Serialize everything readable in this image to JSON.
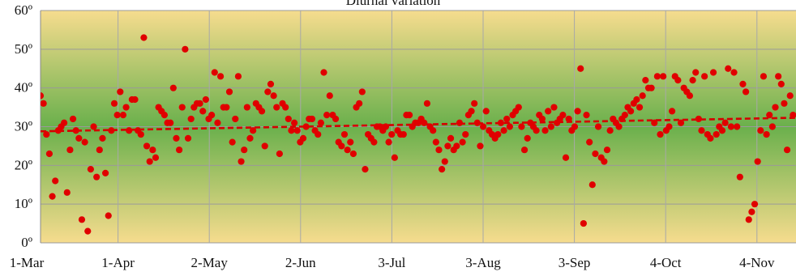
{
  "chart_data": {
    "type": "scatter",
    "title": "Diurnal variation",
    "xlabel": "",
    "ylabel": "",
    "x_tick_labels": [
      "1-Mar",
      "1-Apr",
      "2-May",
      "2-Jun",
      "3-Jul",
      "3-Aug",
      "3-Sep",
      "4-Oct",
      "4-Nov"
    ],
    "y_tick_labels": [
      "0º",
      "10º",
      "20º",
      "30º",
      "40º",
      "50º",
      "60º"
    ],
    "ylim": [
      0,
      60
    ],
    "xlim": [
      "2015-03-01",
      "2015-11-12"
    ],
    "grid": "horizontal",
    "legend": "none",
    "background_gradient": [
      "#f6dc8e",
      "#6ab04c",
      "#f6dc8e"
    ],
    "point_color": "#e00000",
    "trend_color": "#d40000",
    "trendline": {
      "style": "dashed",
      "start": [
        "2015-03-01",
        28.8
      ],
      "end": [
        "2015-11-12",
        32.3
      ]
    },
    "series": [
      {
        "x": [
          "2015-03-01",
          "2015-03-02",
          "2015-03-03",
          "2015-03-04",
          "2015-03-05",
          "2015-03-06",
          "2015-03-07",
          "2015-03-08",
          "2015-03-09",
          "2015-03-10",
          "2015-03-11",
          "2015-03-12",
          "2015-03-13",
          "2015-03-14",
          "2015-03-15",
          "2015-03-16",
          "2015-03-17",
          "2015-03-18",
          "2015-03-19",
          "2015-03-20",
          "2015-03-21",
          "2015-03-22",
          "2015-03-23",
          "2015-03-24",
          "2015-03-25",
          "2015-03-26",
          "2015-03-27",
          "2015-03-28",
          "2015-03-29",
          "2015-03-30",
          "2015-03-31",
          "2015-04-01",
          "2015-04-02",
          "2015-04-03",
          "2015-04-04",
          "2015-04-05",
          "2015-04-06",
          "2015-04-07",
          "2015-04-08",
          "2015-04-09",
          "2015-04-10",
          "2015-04-11",
          "2015-04-12",
          "2015-04-13",
          "2015-04-14",
          "2015-04-15",
          "2015-04-16",
          "2015-04-17",
          "2015-04-18",
          "2015-04-19",
          "2015-04-20",
          "2015-04-21",
          "2015-04-22",
          "2015-04-23",
          "2015-04-24",
          "2015-04-25",
          "2015-04-26",
          "2015-04-27",
          "2015-04-28",
          "2015-04-29",
          "2015-04-30",
          "2015-05-01",
          "2015-05-02",
          "2015-05-03",
          "2015-05-04",
          "2015-05-05",
          "2015-05-06",
          "2015-05-07",
          "2015-05-08",
          "2015-05-09",
          "2015-05-10",
          "2015-05-11",
          "2015-05-12",
          "2015-05-13",
          "2015-05-14",
          "2015-05-15",
          "2015-05-16",
          "2015-05-17",
          "2015-05-18",
          "2015-05-19",
          "2015-05-20",
          "2015-05-21",
          "2015-05-22",
          "2015-05-23",
          "2015-05-24",
          "2015-05-25",
          "2015-05-26",
          "2015-05-27",
          "2015-05-28",
          "2015-05-29",
          "2015-05-30",
          "2015-05-31",
          "2015-06-01",
          "2015-06-02",
          "2015-06-03",
          "2015-06-04",
          "2015-06-05",
          "2015-06-06",
          "2015-06-07",
          "2015-06-08",
          "2015-06-09",
          "2015-06-10",
          "2015-06-11",
          "2015-06-12",
          "2015-06-13",
          "2015-06-14",
          "2015-06-15",
          "2015-06-16",
          "2015-06-17",
          "2015-06-18",
          "2015-06-19",
          "2015-06-20",
          "2015-06-21",
          "2015-06-22",
          "2015-06-23",
          "2015-06-24",
          "2015-06-25",
          "2015-06-26",
          "2015-06-27",
          "2015-06-28",
          "2015-06-29",
          "2015-06-30",
          "2015-07-01",
          "2015-07-02",
          "2015-07-03",
          "2015-07-04",
          "2015-07-05",
          "2015-07-06",
          "2015-07-07",
          "2015-07-08",
          "2015-07-09",
          "2015-07-10",
          "2015-07-11",
          "2015-07-12",
          "2015-07-13",
          "2015-07-14",
          "2015-07-15",
          "2015-07-16",
          "2015-07-17",
          "2015-07-18",
          "2015-07-19",
          "2015-07-20",
          "2015-07-21",
          "2015-07-22",
          "2015-07-23",
          "2015-07-24",
          "2015-07-25",
          "2015-07-26",
          "2015-07-27",
          "2015-07-28",
          "2015-07-29",
          "2015-07-30",
          "2015-07-31",
          "2015-08-01",
          "2015-08-02",
          "2015-08-03",
          "2015-08-04",
          "2015-08-05",
          "2015-08-06",
          "2015-08-07",
          "2015-08-08",
          "2015-08-09",
          "2015-08-10",
          "2015-08-11",
          "2015-08-12",
          "2015-08-13",
          "2015-08-14",
          "2015-08-15",
          "2015-08-16",
          "2015-08-17",
          "2015-08-18",
          "2015-08-19",
          "2015-08-20",
          "2015-08-21",
          "2015-08-22",
          "2015-08-23",
          "2015-08-24",
          "2015-08-25",
          "2015-08-26",
          "2015-08-27",
          "2015-08-28",
          "2015-08-29",
          "2015-08-30",
          "2015-08-31",
          "2015-09-01",
          "2015-09-02",
          "2015-09-03",
          "2015-09-04",
          "2015-09-05",
          "2015-09-06",
          "2015-09-07",
          "2015-09-08",
          "2015-09-09",
          "2015-09-10",
          "2015-09-11",
          "2015-09-12",
          "2015-09-13",
          "2015-09-14",
          "2015-09-15",
          "2015-09-16",
          "2015-09-17",
          "2015-09-18",
          "2015-09-19",
          "2015-09-20",
          "2015-09-21",
          "2015-09-22",
          "2015-09-23",
          "2015-09-24",
          "2015-09-25",
          "2015-09-26",
          "2015-09-27",
          "2015-09-28",
          "2015-09-29",
          "2015-09-30",
          "2015-10-01",
          "2015-10-02",
          "2015-10-03",
          "2015-10-04",
          "2015-10-05",
          "2015-10-06",
          "2015-10-07",
          "2015-10-08",
          "2015-10-09",
          "2015-10-10",
          "2015-10-11",
          "2015-10-12",
          "2015-10-13",
          "2015-10-14",
          "2015-10-15",
          "2015-10-16",
          "2015-10-17",
          "2015-10-18",
          "2015-10-19",
          "2015-10-20",
          "2015-10-21",
          "2015-10-22",
          "2015-10-23",
          "2015-10-24",
          "2015-10-25",
          "2015-10-26",
          "2015-10-27",
          "2015-10-28",
          "2015-10-29",
          "2015-10-30",
          "2015-10-31",
          "2015-11-01",
          "2015-11-02",
          "2015-11-03",
          "2015-11-04",
          "2015-11-05",
          "2015-11-06",
          "2015-11-07",
          "2015-11-08",
          "2015-11-09",
          "2015-11-10",
          "2015-11-11"
        ],
        "y": [
          38,
          36,
          28,
          23,
          12,
          16,
          29,
          30,
          31,
          13,
          24,
          32,
          29,
          27,
          6,
          26,
          3,
          19,
          30,
          17,
          24,
          27,
          18,
          7,
          29,
          36,
          33,
          39,
          33,
          35,
          29,
          37,
          37,
          29,
          28,
          53,
          25,
          21,
          24,
          22,
          35,
          34,
          33,
          31,
          31,
          40,
          27,
          24,
          35,
          50,
          27,
          32,
          35,
          36,
          36,
          34,
          37,
          32,
          33,
          44,
          31,
          43,
          35,
          35,
          39,
          26,
          32,
          43,
          21,
          24,
          35,
          27,
          29,
          36,
          35,
          34,
          25,
          39,
          41,
          38,
          35,
          23,
          36,
          35,
          32,
          29,
          31,
          29,
          26,
          27,
          30,
          32,
          32,
          29,
          28,
          31,
          44,
          33,
          38,
          33,
          32,
          26,
          25,
          28,
          24,
          26,
          23,
          35,
          36,
          39,
          19,
          28,
          27,
          26,
          30,
          30,
          29,
          30,
          26,
          28,
          22,
          29,
          28,
          28,
          33,
          33,
          30,
          31,
          31,
          32,
          31,
          36,
          30,
          29,
          26,
          24,
          19,
          21,
          25,
          27,
          24,
          25,
          31,
          26,
          28,
          33,
          34,
          36,
          31,
          25,
          30,
          34,
          29,
          28,
          27,
          28,
          31,
          29,
          32,
          30,
          33,
          34,
          35,
          30,
          24,
          27,
          31,
          30,
          29,
          33,
          32,
          29,
          34,
          30,
          35,
          31,
          32,
          33,
          22,
          32,
          29,
          30,
          34,
          45,
          5,
          33,
          26,
          15,
          23,
          30,
          22,
          21,
          24,
          29,
          32,
          31,
          30,
          32,
          33,
          35,
          34,
          36,
          37,
          35,
          38,
          42,
          40,
          40,
          31,
          43,
          28,
          43,
          29,
          30,
          34,
          43,
          42,
          31,
          40,
          39,
          38,
          42,
          44,
          32,
          29,
          43,
          28,
          27,
          44,
          28,
          30,
          29,
          31,
          45,
          30,
          44,
          30,
          17,
          41,
          39,
          6,
          8,
          10,
          21,
          29,
          43,
          28,
          33,
          30,
          35,
          43,
          41,
          36,
          24,
          38,
          33
        ]
      }
    ]
  }
}
